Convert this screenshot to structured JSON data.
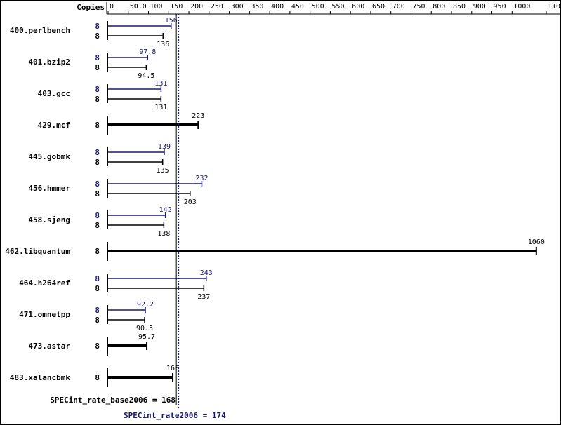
{
  "chart_data": {
    "type": "bar",
    "x_header": "Copies",
    "x_ticks": [
      "0",
      "50.0",
      "100",
      "150",
      "200",
      "250",
      "300",
      "350",
      "400",
      "450",
      "500",
      "550",
      "600",
      "650",
      "700",
      "750",
      "800",
      "850",
      "900",
      "950",
      "1000",
      "1100"
    ],
    "x_tick_values": [
      0,
      50,
      100,
      150,
      200,
      250,
      300,
      350,
      400,
      450,
      500,
      550,
      600,
      650,
      700,
      750,
      800,
      850,
      900,
      950,
      1000,
      1100
    ],
    "benchmarks": [
      {
        "name": "400.perlbench",
        "peak_copies": "8",
        "peak": 156,
        "peak_label": "156",
        "base_copies": "8",
        "base": 136,
        "base_label": "136"
      },
      {
        "name": "401.bzip2",
        "peak_copies": "8",
        "peak": 97.8,
        "peak_label": "97.8",
        "base_copies": "8",
        "base": 94.5,
        "base_label": "94.5"
      },
      {
        "name": "403.gcc",
        "peak_copies": "8",
        "peak": 131,
        "peak_label": "131",
        "base_copies": "8",
        "base": 131,
        "base_label": "131"
      },
      {
        "name": "429.mcf",
        "base_copies": "8",
        "base": 223,
        "base_label": "223"
      },
      {
        "name": "445.gobmk",
        "peak_copies": "8",
        "peak": 139,
        "peak_label": "139",
        "base_copies": "8",
        "base": 135,
        "base_label": "135"
      },
      {
        "name": "456.hmmer",
        "peak_copies": "8",
        "peak": 232,
        "peak_label": "232",
        "base_copies": "8",
        "base": 203,
        "base_label": "203"
      },
      {
        "name": "458.sjeng",
        "peak_copies": "8",
        "peak": 142,
        "peak_label": "142",
        "base_copies": "8",
        "base": 138,
        "base_label": "138"
      },
      {
        "name": "462.libquantum",
        "base_copies": "8",
        "base": 1060,
        "base_label": "1060"
      },
      {
        "name": "464.h264ref",
        "peak_copies": "8",
        "peak": 243,
        "peak_label": "243",
        "base_copies": "8",
        "base": 237,
        "base_label": "237"
      },
      {
        "name": "471.omnetpp",
        "peak_copies": "8",
        "peak": 92.2,
        "peak_label": "92.2",
        "base_copies": "8",
        "base": 90.5,
        "base_label": "90.5"
      },
      {
        "name": "473.astar",
        "base_copies": "8",
        "base": 95.7,
        "base_label": "95.7"
      },
      {
        "name": "483.xalancbmk",
        "base_copies": "8",
        "base": 160,
        "base_label": "160"
      }
    ],
    "base_mean": 168,
    "base_mean_label": "SPECint_rate_base2006 = 168",
    "peak_mean": 174,
    "peak_mean_label": "SPECint_rate2006 = 174",
    "colors": {
      "base": "#000000",
      "peak": "#191970"
    }
  }
}
